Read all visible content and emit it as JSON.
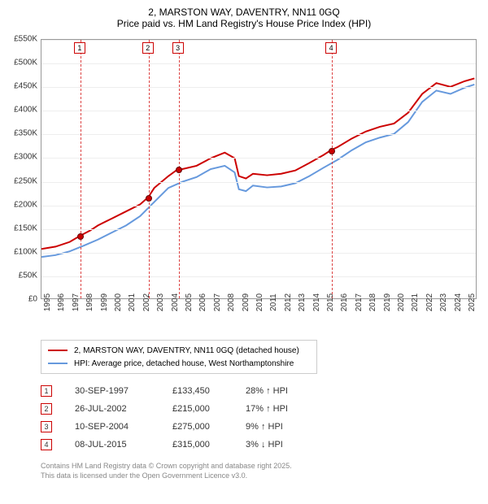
{
  "title": {
    "line1": "2, MARSTON WAY, DAVENTRY, NN11 0GQ",
    "line2": "Price paid vs. HM Land Registry's House Price Index (HPI)"
  },
  "chart": {
    "type": "line",
    "ylim": [
      0,
      550000
    ],
    "ytick_step": 50000,
    "y_tick_labels": [
      "£0",
      "£50K",
      "£100K",
      "£150K",
      "£200K",
      "£250K",
      "£300K",
      "£350K",
      "£400K",
      "£450K",
      "£500K",
      "£550K"
    ],
    "x_years": [
      1995,
      1996,
      1997,
      1998,
      1999,
      2000,
      2001,
      2002,
      2003,
      2004,
      2005,
      2006,
      2007,
      2008,
      2009,
      2010,
      2011,
      2012,
      2013,
      2014,
      2015,
      2016,
      2017,
      2018,
      2019,
      2020,
      2021,
      2022,
      2023,
      2024,
      2025
    ],
    "x_range": [
      1995,
      2025.8
    ],
    "background_color": "#ffffff",
    "grid_color": "#eeeeee",
    "border_color": "#999999",
    "series": [
      {
        "key": "property",
        "color": "#cc0000",
        "width": 2,
        "points": [
          [
            1995,
            105000
          ],
          [
            1996,
            110000
          ],
          [
            1997,
            120000
          ],
          [
            1997.75,
            133450
          ],
          [
            1998.5,
            145000
          ],
          [
            1999,
            155000
          ],
          [
            2000,
            170000
          ],
          [
            2001,
            185000
          ],
          [
            2002,
            200000
          ],
          [
            2002.57,
            215000
          ],
          [
            2003,
            235000
          ],
          [
            2004,
            260000
          ],
          [
            2004.69,
            275000
          ],
          [
            2005,
            275000
          ],
          [
            2006,
            282000
          ],
          [
            2007,
            298000
          ],
          [
            2008,
            310000
          ],
          [
            2008.7,
            298000
          ],
          [
            2009,
            260000
          ],
          [
            2009.5,
            255000
          ],
          [
            2010,
            265000
          ],
          [
            2011,
            262000
          ],
          [
            2012,
            265000
          ],
          [
            2013,
            272000
          ],
          [
            2014,
            288000
          ],
          [
            2015,
            305000
          ],
          [
            2015.52,
            315000
          ],
          [
            2016,
            322000
          ],
          [
            2017,
            340000
          ],
          [
            2018,
            355000
          ],
          [
            2019,
            365000
          ],
          [
            2020,
            372000
          ],
          [
            2021,
            395000
          ],
          [
            2022,
            435000
          ],
          [
            2023,
            458000
          ],
          [
            2024,
            450000
          ],
          [
            2025,
            462000
          ],
          [
            2025.7,
            468000
          ]
        ]
      },
      {
        "key": "hpi",
        "color": "#6699dd",
        "width": 2,
        "points": [
          [
            1995,
            88000
          ],
          [
            1996,
            92000
          ],
          [
            1997,
            100000
          ],
          [
            1998,
            112000
          ],
          [
            1999,
            125000
          ],
          [
            2000,
            140000
          ],
          [
            2001,
            155000
          ],
          [
            2002,
            175000
          ],
          [
            2003,
            205000
          ],
          [
            2004,
            235000
          ],
          [
            2005,
            248000
          ],
          [
            2006,
            258000
          ],
          [
            2007,
            275000
          ],
          [
            2008,
            282000
          ],
          [
            2008.7,
            268000
          ],
          [
            2009,
            232000
          ],
          [
            2009.5,
            228000
          ],
          [
            2010,
            240000
          ],
          [
            2011,
            236000
          ],
          [
            2012,
            238000
          ],
          [
            2013,
            245000
          ],
          [
            2014,
            260000
          ],
          [
            2015,
            278000
          ],
          [
            2016,
            295000
          ],
          [
            2017,
            315000
          ],
          [
            2018,
            332000
          ],
          [
            2019,
            342000
          ],
          [
            2020,
            350000
          ],
          [
            2021,
            375000
          ],
          [
            2022,
            418000
          ],
          [
            2023,
            442000
          ],
          [
            2024,
            435000
          ],
          [
            2025,
            448000
          ],
          [
            2025.7,
            455000
          ]
        ]
      }
    ],
    "markers": [
      {
        "n": "1",
        "year": 1997.75,
        "value": 133450
      },
      {
        "n": "2",
        "year": 2002.57,
        "value": 215000
      },
      {
        "n": "3",
        "year": 2004.69,
        "value": 275000
      },
      {
        "n": "4",
        "year": 2015.52,
        "value": 315000
      }
    ],
    "marker_line_color": "#dd4444",
    "marker_box_border": "#cc0000",
    "marker_dot_fill": "#cc0000",
    "marker_dot_stroke": "#660000",
    "marker_dot_radius": 4
  },
  "legend": {
    "items": [
      {
        "color": "#cc0000",
        "label": "2, MARSTON WAY, DAVENTRY, NN11 0GQ (detached house)"
      },
      {
        "color": "#6699dd",
        "label": "HPI: Average price, detached house, West Northamptonshire"
      }
    ]
  },
  "sales": [
    {
      "n": "1",
      "date": "30-SEP-1997",
      "price": "£133,450",
      "pct": "28% ↑ HPI"
    },
    {
      "n": "2",
      "date": "26-JUL-2002",
      "price": "£215,000",
      "pct": "17% ↑ HPI"
    },
    {
      "n": "3",
      "date": "10-SEP-2004",
      "price": "£275,000",
      "pct": "9% ↑ HPI"
    },
    {
      "n": "4",
      "date": "08-JUL-2015",
      "price": "£315,000",
      "pct": "3% ↓ HPI"
    }
  ],
  "footer": {
    "line1": "Contains HM Land Registry data © Crown copyright and database right 2025.",
    "line2": "This data is licensed under the Open Government Licence v3.0."
  }
}
